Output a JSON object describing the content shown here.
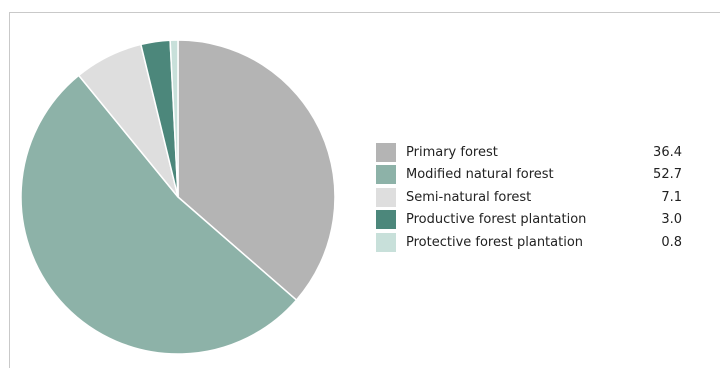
{
  "chart_data": {
    "type": "pie",
    "title": "",
    "start_angle_deg": 0,
    "direction": "clockwise",
    "slices": [
      {
        "label": "Primary forest",
        "value": 36.4,
        "color": "#b4b4b4"
      },
      {
        "label": "Modified natural forest",
        "value": 52.7,
        "color": "#8db2a8"
      },
      {
        "label": "Semi-natural forest",
        "value": 7.1,
        "color": "#dedede"
      },
      {
        "label": "Productive forest plantation",
        "value": 3.0,
        "color": "#4c877b"
      },
      {
        "label": "Protective forest plantation",
        "value": 0.8,
        "color": "#c8e0da"
      }
    ],
    "value_strings": [
      "36.4",
      "52.7",
      "7.1",
      "3.0",
      "0.8"
    ],
    "legend_position": "right"
  }
}
